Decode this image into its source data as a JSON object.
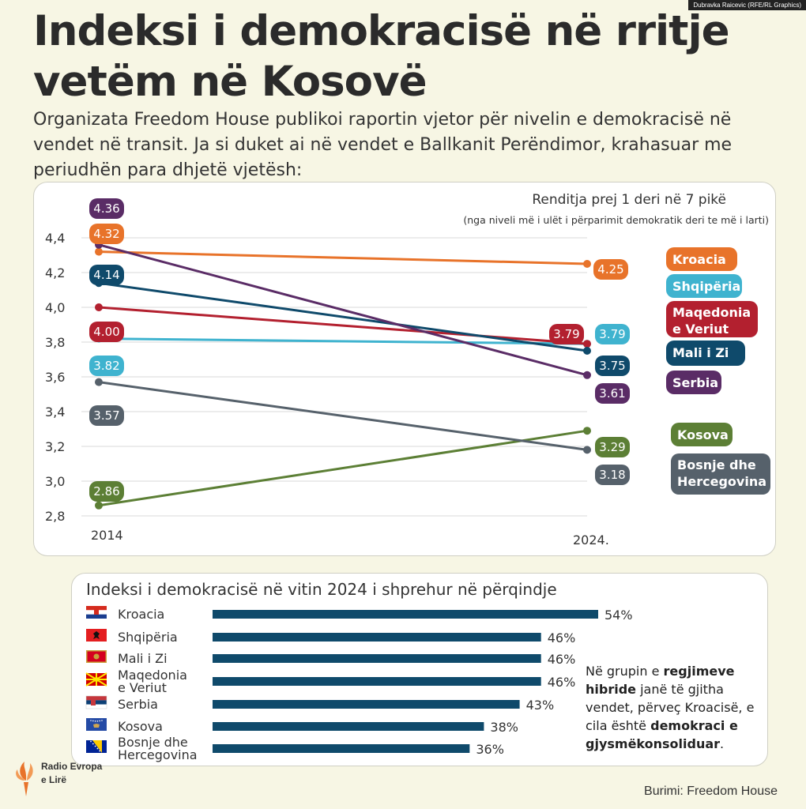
{
  "credit": "Dubravka Raicevic (RFE/RL Graphics)",
  "title": "Indeksi i demokracisë në rritje vetëm në Kosovë",
  "subtitle": "Organizata Freedom House publikoi raportin vjetor për nivelin e demokracisë në vendet në transit. Ja si duket ai në vendet e Ballkanit Perëndimor, krahasuar me periudhën para dhjetë vjetësh:",
  "chart_data": [
    {
      "type": "line",
      "title": "Renditja prej 1 deri në 7 pikë",
      "subtitle": "(nga niveli më i ulët i përparimit demokratik deri te më i larti)",
      "x": [
        "2014",
        "2024."
      ],
      "ylim": [
        2.8,
        4.4
      ],
      "yticks": [
        "2,8",
        "3,0",
        "3,2",
        "3,4",
        "3,6",
        "3,8",
        "4,0",
        "4,2",
        "4,4"
      ],
      "ytick_values": [
        2.8,
        3.0,
        3.2,
        3.4,
        3.6,
        3.8,
        4.0,
        4.2,
        4.4
      ],
      "grid": true,
      "series": [
        {
          "name": "Kroacia",
          "values": [
            4.32,
            4.25
          ],
          "labels": [
            "4.32",
            "4.25"
          ],
          "color": "#e8732a"
        },
        {
          "name": "Shqipëria",
          "values": [
            3.82,
            3.79
          ],
          "labels": [
            "3.82",
            "3.79"
          ],
          "color": "#3fb3cf"
        },
        {
          "name": "Maqedonia e Veriut",
          "values": [
            4.0,
            3.79
          ],
          "labels": [
            "4.00",
            "3.79"
          ],
          "color": "#b3202f"
        },
        {
          "name": "Mali i Zi",
          "values": [
            4.14,
            3.75
          ],
          "labels": [
            "4.14",
            "3.75"
          ],
          "color": "#0f4a6b"
        },
        {
          "name": "Serbia",
          "values": [
            4.36,
            3.61
          ],
          "labels": [
            "4.36",
            "3.61"
          ],
          "color": "#5a2c66"
        },
        {
          "name": "Kosova",
          "values": [
            2.86,
            3.29
          ],
          "labels": [
            "2.86",
            "3.29"
          ],
          "color": "#5c7f35"
        },
        {
          "name": "Bosnje dhe Hercegovina",
          "values": [
            3.57,
            3.18
          ],
          "labels": [
            "3.57",
            "3.18"
          ],
          "color": "#56616b"
        }
      ]
    },
    {
      "type": "bar",
      "orientation": "horizontal",
      "title": "Indeksi i demokracisë në vitin 2024 i shprehur në përqindje",
      "categories": [
        "Kroacia",
        "Shqipëria",
        "Mali i Zi",
        "Maqedonia e Veriut",
        "Serbia",
        "Kosova",
        "Bosnje dhe Hercegovina"
      ],
      "values": [
        54,
        46,
        46,
        46,
        43,
        38,
        36
      ],
      "value_labels": [
        "54%",
        "46%",
        "46%",
        "46%",
        "43%",
        "38%",
        "36%"
      ],
      "color": "#0f4a6b",
      "flags": [
        "croatia-flag-icon",
        "albania-flag-icon",
        "montenegro-flag-icon",
        "north-macedonia-flag-icon",
        "serbia-flag-icon",
        "kosovo-flag-icon",
        "bosnia-flag-icon"
      ]
    }
  ],
  "note": {
    "p1": "Në grupin e ",
    "b1": "regjimeve hibride",
    "p2": " janë të gjitha vendet, përveç Kroacisë, e cila është ",
    "b2": "demokraci e gjysmëkonsoliduar",
    "p3": "."
  },
  "source": "Burimi: Freedom House",
  "logo": {
    "line1": "Radio Evropa",
    "line2": "e Lirë",
    "icon": "rfe-torch-logo-icon"
  }
}
